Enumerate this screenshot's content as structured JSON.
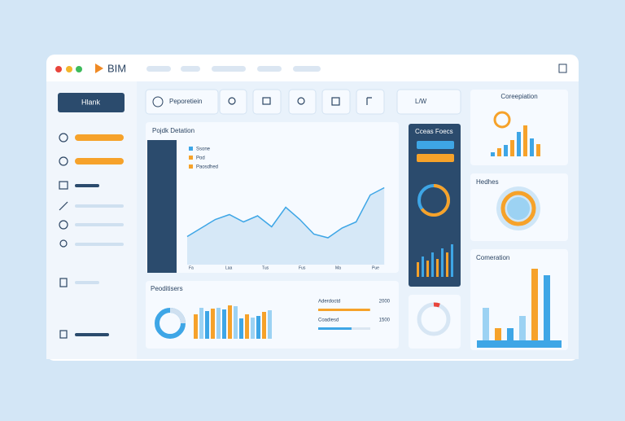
{
  "window": {
    "brand": "BIM",
    "toolbar": {
      "search": "Peporetiein",
      "filter": "L/W"
    }
  },
  "sidebar": {
    "button": "Hlank"
  },
  "line_panel": {
    "title": "Pojdk Detation",
    "legend": [
      "Ssone",
      "Pod",
      "Paosdhed"
    ],
    "values": [
      23,
      30,
      37,
      41,
      35,
      40,
      31,
      47,
      37,
      25,
      22,
      30,
      35,
      57,
      63
    ],
    "x_labels": [
      "Fa",
      "Laa",
      "Tus",
      "Fus",
      "Ma",
      "Pue"
    ]
  },
  "dark_panel": {
    "title": "Cceas Foecs",
    "gauge": 65,
    "bars": [
      18,
      25,
      20,
      30,
      22,
      35,
      30,
      40
    ]
  },
  "corr_panel": {
    "title": "Coreepiation",
    "bars": [
      5,
      10,
      14,
      20,
      30,
      38,
      22,
      15
    ]
  },
  "health_panel": {
    "title": "Hedhes"
  },
  "comp_panel": {
    "title": "Comeration",
    "bars": [
      40,
      15,
      15,
      30,
      88,
      80
    ]
  },
  "pos_panel": {
    "title": "Peoditisers",
    "bars": [
      30,
      38,
      34,
      37,
      38,
      36,
      41,
      40,
      25,
      30,
      26,
      28,
      33,
      35
    ],
    "rows": [
      {
        "label": "Aderdoctd",
        "value": 2000,
        "progress": 70
      },
      {
        "label": "Coadiesd",
        "value": 1500,
        "progress": 45
      }
    ]
  }
}
